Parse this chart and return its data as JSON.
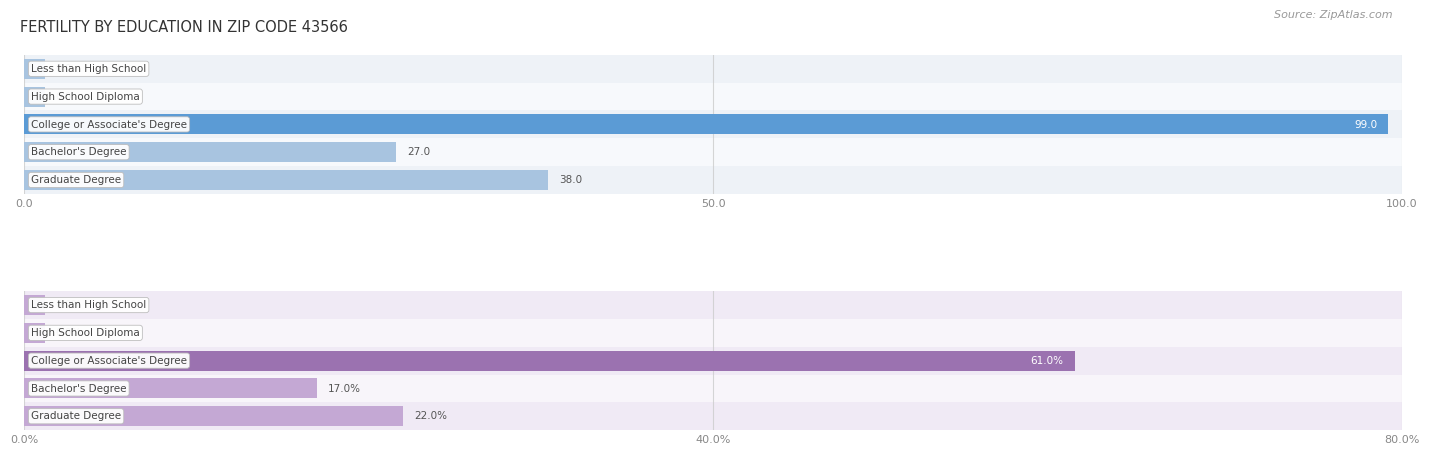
{
  "title": "FERTILITY BY EDUCATION IN ZIP CODE 43566",
  "source_text": "Source: ZipAtlas.com",
  "top_chart": {
    "categories": [
      "Less than High School",
      "High School Diploma",
      "College or Associate's Degree",
      "Bachelor's Degree",
      "Graduate Degree"
    ],
    "values": [
      0.0,
      0.0,
      99.0,
      27.0,
      38.0
    ],
    "xlim": [
      0,
      100
    ],
    "xticks": [
      0.0,
      50.0,
      100.0
    ],
    "xtick_labels": [
      "0.0",
      "50.0",
      "100.0"
    ],
    "bar_color_normal": "#a8c4e0",
    "bar_color_max": "#5b9bd5",
    "max_index": 2,
    "value_label_suffix": "",
    "row_bg_even": "#eef2f7",
    "row_bg_odd": "#f7f9fc"
  },
  "bottom_chart": {
    "categories": [
      "Less than High School",
      "High School Diploma",
      "College or Associate's Degree",
      "Bachelor's Degree",
      "Graduate Degree"
    ],
    "values": [
      0.0,
      0.0,
      61.0,
      17.0,
      22.0
    ],
    "xlim": [
      0,
      80
    ],
    "xticks": [
      0.0,
      40.0,
      80.0
    ],
    "xtick_labels": [
      "0.0%",
      "40.0%",
      "80.0%"
    ],
    "bar_color_normal": "#c4a8d4",
    "bar_color_max": "#9b72b0",
    "max_index": 2,
    "value_label_suffix": "%",
    "row_bg_even": "#f0eaf5",
    "row_bg_odd": "#f8f5fa"
  },
  "label_box_color": "#ffffff",
  "label_box_edge": "#bbbbbb",
  "label_text_color": "#444444",
  "value_text_color_inside": "#ffffff",
  "value_text_color_outside": "#555555",
  "title_fontsize": 10.5,
  "source_fontsize": 8,
  "bar_label_fontsize": 7.5,
  "tick_fontsize": 8,
  "axis_label_color": "#888888",
  "background_color": "#ffffff",
  "bar_height": 0.72,
  "grid_color": "#cccccc"
}
